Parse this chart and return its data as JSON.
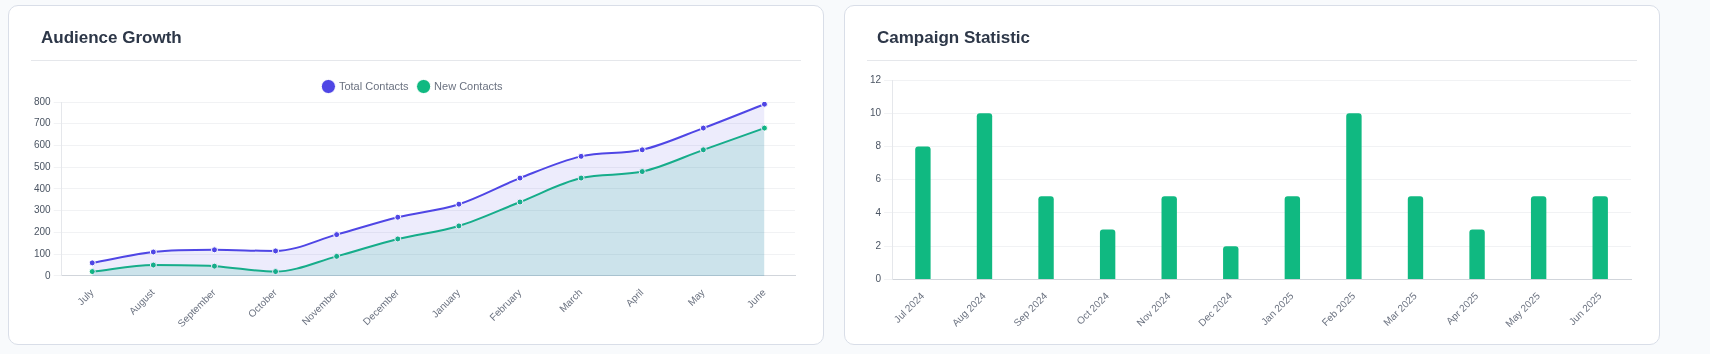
{
  "chart_data": [
    {
      "type": "area",
      "title": "Audience Growth",
      "categories": [
        "July",
        "August",
        "September",
        "October",
        "November",
        "December",
        "January",
        "February",
        "March",
        "April",
        "May",
        "June"
      ],
      "series": [
        {
          "name": "Total Contacts",
          "color": "#4f46e5",
          "values": [
            60,
            110,
            120,
            115,
            190,
            270,
            330,
            450,
            550,
            580,
            680,
            790
          ]
        },
        {
          "name": "New Contacts",
          "color": "#10b981",
          "values": [
            20,
            50,
            45,
            20,
            90,
            170,
            230,
            340,
            450,
            480,
            580,
            680
          ]
        }
      ],
      "ylim": [
        0,
        800
      ],
      "yticks": [
        0,
        100,
        200,
        300,
        400,
        500,
        600,
        700,
        800
      ],
      "grid": "y",
      "legend": "top",
      "marker": "circle"
    },
    {
      "type": "bar",
      "title": "Campaign Statistic",
      "categories": [
        "Jul 2024",
        "Aug 2024",
        "Sep 2024",
        "Oct 2024",
        "Nov 2024",
        "Dec 2024",
        "Jan 2025",
        "Feb 2025",
        "Mar 2025",
        "Apr 2025",
        "May 2025",
        "Jun 2025"
      ],
      "series": [
        {
          "color": "#10b981",
          "values": [
            8,
            10,
            5,
            3,
            5,
            2,
            5,
            10,
            5,
            3,
            5,
            5
          ]
        }
      ],
      "ylim": [
        0,
        12
      ],
      "yticks": [
        0,
        2,
        4,
        6,
        8,
        10,
        12
      ],
      "grid": "y"
    }
  ]
}
